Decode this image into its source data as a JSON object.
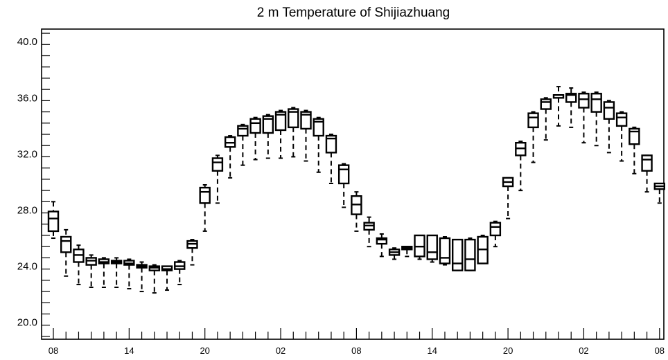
{
  "chart_data": {
    "type": "boxplot",
    "title": "2 m Temperature of Shijiazhuang",
    "xlabel": "",
    "ylabel": "",
    "ylim": [
      18.8,
      40.9
    ],
    "yticks": [
      "20.0",
      "24.0",
      "28.0",
      "32.0",
      "36.0",
      "40.0"
    ],
    "x_tick_labels": [
      "08",
      "14",
      "20",
      "02",
      "08",
      "14",
      "20",
      "02",
      "08"
    ],
    "x_start_hour": 8,
    "x_step_hours": 1,
    "boxes": [
      {
        "hour": 8,
        "min": 26.0,
        "q1": 26.5,
        "median": 27.4,
        "q3": 27.9,
        "max": 28.6
      },
      {
        "hour": 9,
        "min": 23.3,
        "q1": 25.0,
        "median": 25.8,
        "q3": 26.1,
        "max": 26.6
      },
      {
        "hour": 10,
        "min": 22.7,
        "q1": 24.3,
        "median": 24.8,
        "q3": 25.2,
        "max": 25.5
      },
      {
        "hour": 11,
        "min": 22.5,
        "q1": 24.1,
        "median": 24.4,
        "q3": 24.6,
        "max": 24.8
      },
      {
        "hour": 12,
        "min": 22.5,
        "q1": 24.2,
        "median": 24.3,
        "q3": 24.5,
        "max": 24.6
      },
      {
        "hour": 13,
        "min": 22.5,
        "q1": 24.2,
        "median": 24.3,
        "q3": 24.4,
        "max": 24.6
      },
      {
        "hour": 14,
        "min": 22.4,
        "q1": 24.1,
        "median": 24.2,
        "q3": 24.4,
        "max": 24.5
      },
      {
        "hour": 15,
        "min": 22.2,
        "q1": 23.9,
        "median": 24.0,
        "q3": 24.1,
        "max": 24.3
      },
      {
        "hour": 16,
        "min": 22.1,
        "q1": 23.7,
        "median": 23.9,
        "q3": 24.0,
        "max": 24.1
      },
      {
        "hour": 17,
        "min": 22.3,
        "q1": 23.7,
        "median": 23.8,
        "q3": 24.0,
        "max": 24.0
      },
      {
        "hour": 18,
        "min": 22.7,
        "q1": 23.8,
        "median": 24.0,
        "q3": 24.3,
        "max": 24.4
      },
      {
        "hour": 19,
        "min": 24.1,
        "q1": 25.3,
        "median": 25.6,
        "q3": 25.8,
        "max": 25.9
      },
      {
        "hour": 20,
        "min": 26.5,
        "q1": 28.5,
        "median": 29.3,
        "q3": 29.6,
        "max": 29.8
      },
      {
        "hour": 21,
        "min": 28.5,
        "q1": 30.8,
        "median": 31.4,
        "q3": 31.7,
        "max": 31.9
      },
      {
        "hour": 22,
        "min": 30.3,
        "q1": 32.5,
        "median": 32.8,
        "q3": 33.2,
        "max": 33.3
      },
      {
        "hour": 23,
        "min": 31.2,
        "q1": 33.3,
        "median": 33.8,
        "q3": 34.0,
        "max": 34.1
      },
      {
        "hour": 0,
        "min": 31.6,
        "q1": 33.5,
        "median": 34.2,
        "q3": 34.5,
        "max": 34.6
      },
      {
        "hour": 1,
        "min": 31.7,
        "q1": 33.5,
        "median": 34.5,
        "q3": 34.7,
        "max": 34.8
      },
      {
        "hour": 2,
        "min": 31.7,
        "q1": 33.7,
        "median": 34.8,
        "q3": 35.0,
        "max": 35.1
      },
      {
        "hour": 3,
        "min": 31.8,
        "q1": 33.9,
        "median": 35.0,
        "q3": 35.2,
        "max": 35.3
      },
      {
        "hour": 4,
        "min": 31.5,
        "q1": 33.8,
        "median": 34.8,
        "q3": 35.0,
        "max": 35.1
      },
      {
        "hour": 5,
        "min": 30.7,
        "q1": 33.3,
        "median": 34.3,
        "q3": 34.5,
        "max": 34.6
      },
      {
        "hour": 6,
        "min": 29.9,
        "q1": 32.1,
        "median": 33.1,
        "q3": 33.3,
        "max": 33.4
      },
      {
        "hour": 7,
        "min": 28.2,
        "q1": 29.9,
        "median": 30.9,
        "q3": 31.2,
        "max": 31.3
      },
      {
        "hour": 8,
        "min": 26.5,
        "q1": 27.7,
        "median": 28.4,
        "q3": 29.0,
        "max": 29.3
      },
      {
        "hour": 9,
        "min": 25.4,
        "q1": 26.6,
        "median": 26.9,
        "q3": 27.1,
        "max": 27.5
      },
      {
        "hour": 10,
        "min": 24.7,
        "q1": 25.6,
        "median": 25.9,
        "q3": 26.0,
        "max": 26.3
      },
      {
        "hour": 11,
        "min": 24.5,
        "q1": 24.8,
        "median": 25.0,
        "q3": 25.2,
        "max": 25.3
      },
      {
        "hour": 12,
        "min": 24.7,
        "q1": 25.2,
        "median": 25.3,
        "q3": 25.4,
        "max": 25.4
      },
      {
        "hour": 13,
        "min": 24.5,
        "q1": 24.7,
        "median": 25.4,
        "q3": 26.2,
        "max": 26.2
      },
      {
        "hour": 14,
        "min": 24.3,
        "q1": 24.5,
        "median": 25.0,
        "q3": 26.2,
        "max": 26.2
      },
      {
        "hour": 15,
        "min": 24.1,
        "q1": 24.2,
        "median": 24.6,
        "q3": 26.0,
        "max": 26.1
      },
      {
        "hour": 16,
        "min": 23.7,
        "q1": 23.7,
        "median": 24.2,
        "q3": 25.9,
        "max": 25.9
      },
      {
        "hour": 17,
        "min": 23.7,
        "q1": 23.7,
        "median": 24.5,
        "q3": 25.9,
        "max": 26.0
      },
      {
        "hour": 18,
        "min": 24.2,
        "q1": 24.2,
        "median": 25.2,
        "q3": 26.1,
        "max": 26.2
      },
      {
        "hour": 19,
        "min": 25.4,
        "q1": 26.2,
        "median": 26.8,
        "q3": 27.1,
        "max": 27.2
      },
      {
        "hour": 20,
        "min": 27.4,
        "q1": 29.7,
        "median": 30.0,
        "q3": 30.3,
        "max": 30.3
      },
      {
        "hour": 21,
        "min": 29.4,
        "q1": 31.9,
        "median": 32.4,
        "q3": 32.8,
        "max": 32.9
      },
      {
        "hour": 22,
        "min": 31.4,
        "q1": 33.9,
        "median": 34.6,
        "q3": 34.9,
        "max": 35.0
      },
      {
        "hour": 23,
        "min": 33.0,
        "q1": 35.2,
        "median": 35.7,
        "q3": 35.9,
        "max": 36.0
      },
      {
        "hour": 0,
        "min": 34.0,
        "q1": 36.0,
        "median": 36.2,
        "q3": 36.2,
        "max": 36.8
      },
      {
        "hour": 1,
        "min": 33.9,
        "q1": 35.7,
        "median": 36.2,
        "q3": 36.3,
        "max": 36.7
      },
      {
        "hour": 2,
        "min": 32.8,
        "q1": 35.3,
        "median": 35.9,
        "q3": 36.3,
        "max": 36.4
      },
      {
        "hour": 3,
        "min": 32.6,
        "q1": 35.0,
        "median": 35.9,
        "q3": 36.3,
        "max": 36.4
      },
      {
        "hour": 4,
        "min": 32.1,
        "q1": 34.5,
        "median": 35.3,
        "q3": 35.7,
        "max": 35.8
      },
      {
        "hour": 5,
        "min": 31.5,
        "q1": 34.0,
        "median": 34.6,
        "q3": 34.9,
        "max": 35.0
      },
      {
        "hour": 6,
        "min": 30.6,
        "q1": 32.7,
        "median": 33.6,
        "q3": 33.8,
        "max": 33.9
      },
      {
        "hour": 7,
        "min": 29.3,
        "q1": 30.8,
        "median": 31.6,
        "q3": 31.9,
        "max": 31.9
      },
      {
        "hour": 8,
        "min": 28.5,
        "q1": 29.5,
        "median": 29.7,
        "q3": 29.9,
        "max": 29.9
      }
    ],
    "grid": false,
    "legend": "none",
    "colors": {
      "line": "#000000",
      "background": "#ffffff"
    }
  }
}
